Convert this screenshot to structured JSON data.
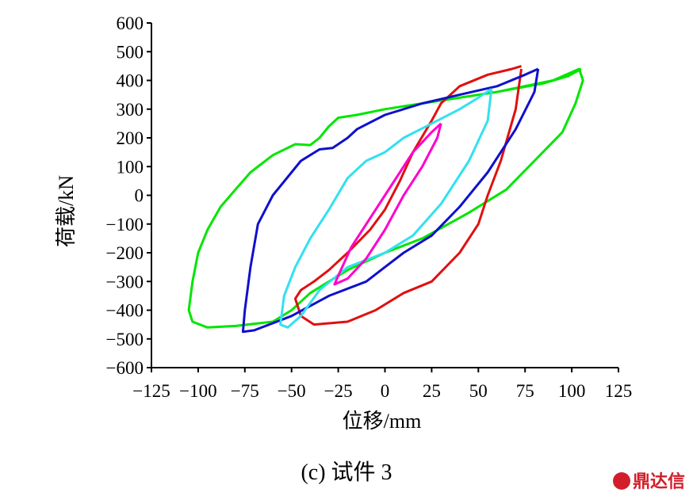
{
  "chart_data": {
    "type": "line",
    "xlabel": "位移/mm",
    "ylabel": "荷载/kN",
    "xlim": [
      -125,
      125
    ],
    "ylim": [
      -600,
      600
    ],
    "xticks": [
      -125,
      -100,
      -75,
      -50,
      -25,
      0,
      25,
      50,
      75,
      100,
      125
    ],
    "yticks": [
      600,
      500,
      400,
      300,
      200,
      100,
      0,
      -100,
      -200,
      -300,
      -400,
      -500,
      -600
    ],
    "grid": false,
    "legend": "none",
    "series": [
      {
        "color": "#00e600",
        "points": [
          [
            105,
            440
          ],
          [
            98,
            415
          ],
          [
            85,
            390
          ],
          [
            60,
            360
          ],
          [
            40,
            340
          ],
          [
            20,
            320
          ],
          [
            0,
            300
          ],
          [
            -15,
            280
          ],
          [
            -25,
            270
          ],
          [
            -30,
            240
          ],
          [
            -35,
            200
          ],
          [
            -40,
            175
          ],
          [
            -48,
            178
          ],
          [
            -60,
            140
          ],
          [
            -72,
            80
          ],
          [
            -80,
            20
          ],
          [
            -88,
            -40
          ],
          [
            -95,
            -120
          ],
          [
            -100,
            -200
          ],
          [
            -103,
            -300
          ],
          [
            -105,
            -400
          ],
          [
            -103,
            -440
          ],
          [
            -95,
            -460
          ],
          [
            -80,
            -455
          ],
          [
            -60,
            -440
          ],
          [
            -50,
            -400
          ],
          [
            -40,
            -340
          ],
          [
            -20,
            -260
          ],
          [
            0,
            -200
          ],
          [
            20,
            -150
          ],
          [
            45,
            -60
          ],
          [
            65,
            20
          ],
          [
            80,
            120
          ],
          [
            95,
            220
          ],
          [
            102,
            320
          ],
          [
            106,
            400
          ],
          [
            104,
            440
          ],
          [
            90,
            400
          ],
          [
            60,
            360
          ],
          [
            20,
            320
          ],
          [
            0,
            300
          ]
        ]
      },
      {
        "color": "#e01010",
        "points": [
          [
            73,
            450
          ],
          [
            68,
            440
          ],
          [
            55,
            420
          ],
          [
            40,
            380
          ],
          [
            30,
            320
          ],
          [
            25,
            260
          ],
          [
            15,
            150
          ],
          [
            8,
            50
          ],
          [
            0,
            -50
          ],
          [
            -8,
            -120
          ],
          [
            -20,
            -200
          ],
          [
            -30,
            -260
          ],
          [
            -38,
            -300
          ],
          [
            -45,
            -330
          ],
          [
            -48,
            -360
          ],
          [
            -45,
            -420
          ],
          [
            -38,
            -450
          ],
          [
            -20,
            -440
          ],
          [
            -5,
            -400
          ],
          [
            10,
            -340
          ],
          [
            25,
            -300
          ],
          [
            40,
            -200
          ],
          [
            50,
            -100
          ],
          [
            55,
            0
          ],
          [
            62,
            120
          ],
          [
            70,
            300
          ],
          [
            73,
            440
          ]
        ]
      },
      {
        "color": "#1010cc",
        "points": [
          [
            82,
            440
          ],
          [
            75,
            420
          ],
          [
            60,
            380
          ],
          [
            40,
            350
          ],
          [
            20,
            320
          ],
          [
            0,
            280
          ],
          [
            -15,
            230
          ],
          [
            -20,
            200
          ],
          [
            -28,
            165
          ],
          [
            -35,
            160
          ],
          [
            -45,
            120
          ],
          [
            -60,
            0
          ],
          [
            -68,
            -100
          ],
          [
            -72,
            -250
          ],
          [
            -75,
            -400
          ],
          [
            -76,
            -475
          ],
          [
            -70,
            -470
          ],
          [
            -50,
            -420
          ],
          [
            -30,
            -350
          ],
          [
            -10,
            -300
          ],
          [
            0,
            -250
          ],
          [
            10,
            -200
          ],
          [
            25,
            -140
          ],
          [
            40,
            -40
          ],
          [
            55,
            80
          ],
          [
            70,
            230
          ],
          [
            80,
            360
          ],
          [
            82,
            440
          ]
        ]
      },
      {
        "color": "#33e0f0",
        "points": [
          [
            57,
            370
          ],
          [
            50,
            340
          ],
          [
            40,
            300
          ],
          [
            25,
            250
          ],
          [
            10,
            200
          ],
          [
            0,
            150
          ],
          [
            -10,
            120
          ],
          [
            -20,
            60
          ],
          [
            -30,
            -50
          ],
          [
            -40,
            -150
          ],
          [
            -48,
            -250
          ],
          [
            -54,
            -350
          ],
          [
            -56,
            -450
          ],
          [
            -52,
            -460
          ],
          [
            -45,
            -420
          ],
          [
            -35,
            -330
          ],
          [
            -20,
            -250
          ],
          [
            0,
            -200
          ],
          [
            15,
            -140
          ],
          [
            30,
            -30
          ],
          [
            45,
            120
          ],
          [
            55,
            260
          ],
          [
            57,
            370
          ]
        ]
      },
      {
        "color": "#ff00cc",
        "points": [
          [
            30,
            250
          ],
          [
            25,
            220
          ],
          [
            15,
            150
          ],
          [
            8,
            80
          ],
          [
            0,
            0
          ],
          [
            -8,
            -80
          ],
          [
            -18,
            -180
          ],
          [
            -25,
            -280
          ],
          [
            -27,
            -310
          ],
          [
            -20,
            -290
          ],
          [
            -10,
            -220
          ],
          [
            0,
            -120
          ],
          [
            10,
            0
          ],
          [
            20,
            100
          ],
          [
            28,
            200
          ],
          [
            30,
            250
          ]
        ]
      }
    ]
  },
  "caption": "(c)  试件 3",
  "watermark": "鼎达信"
}
